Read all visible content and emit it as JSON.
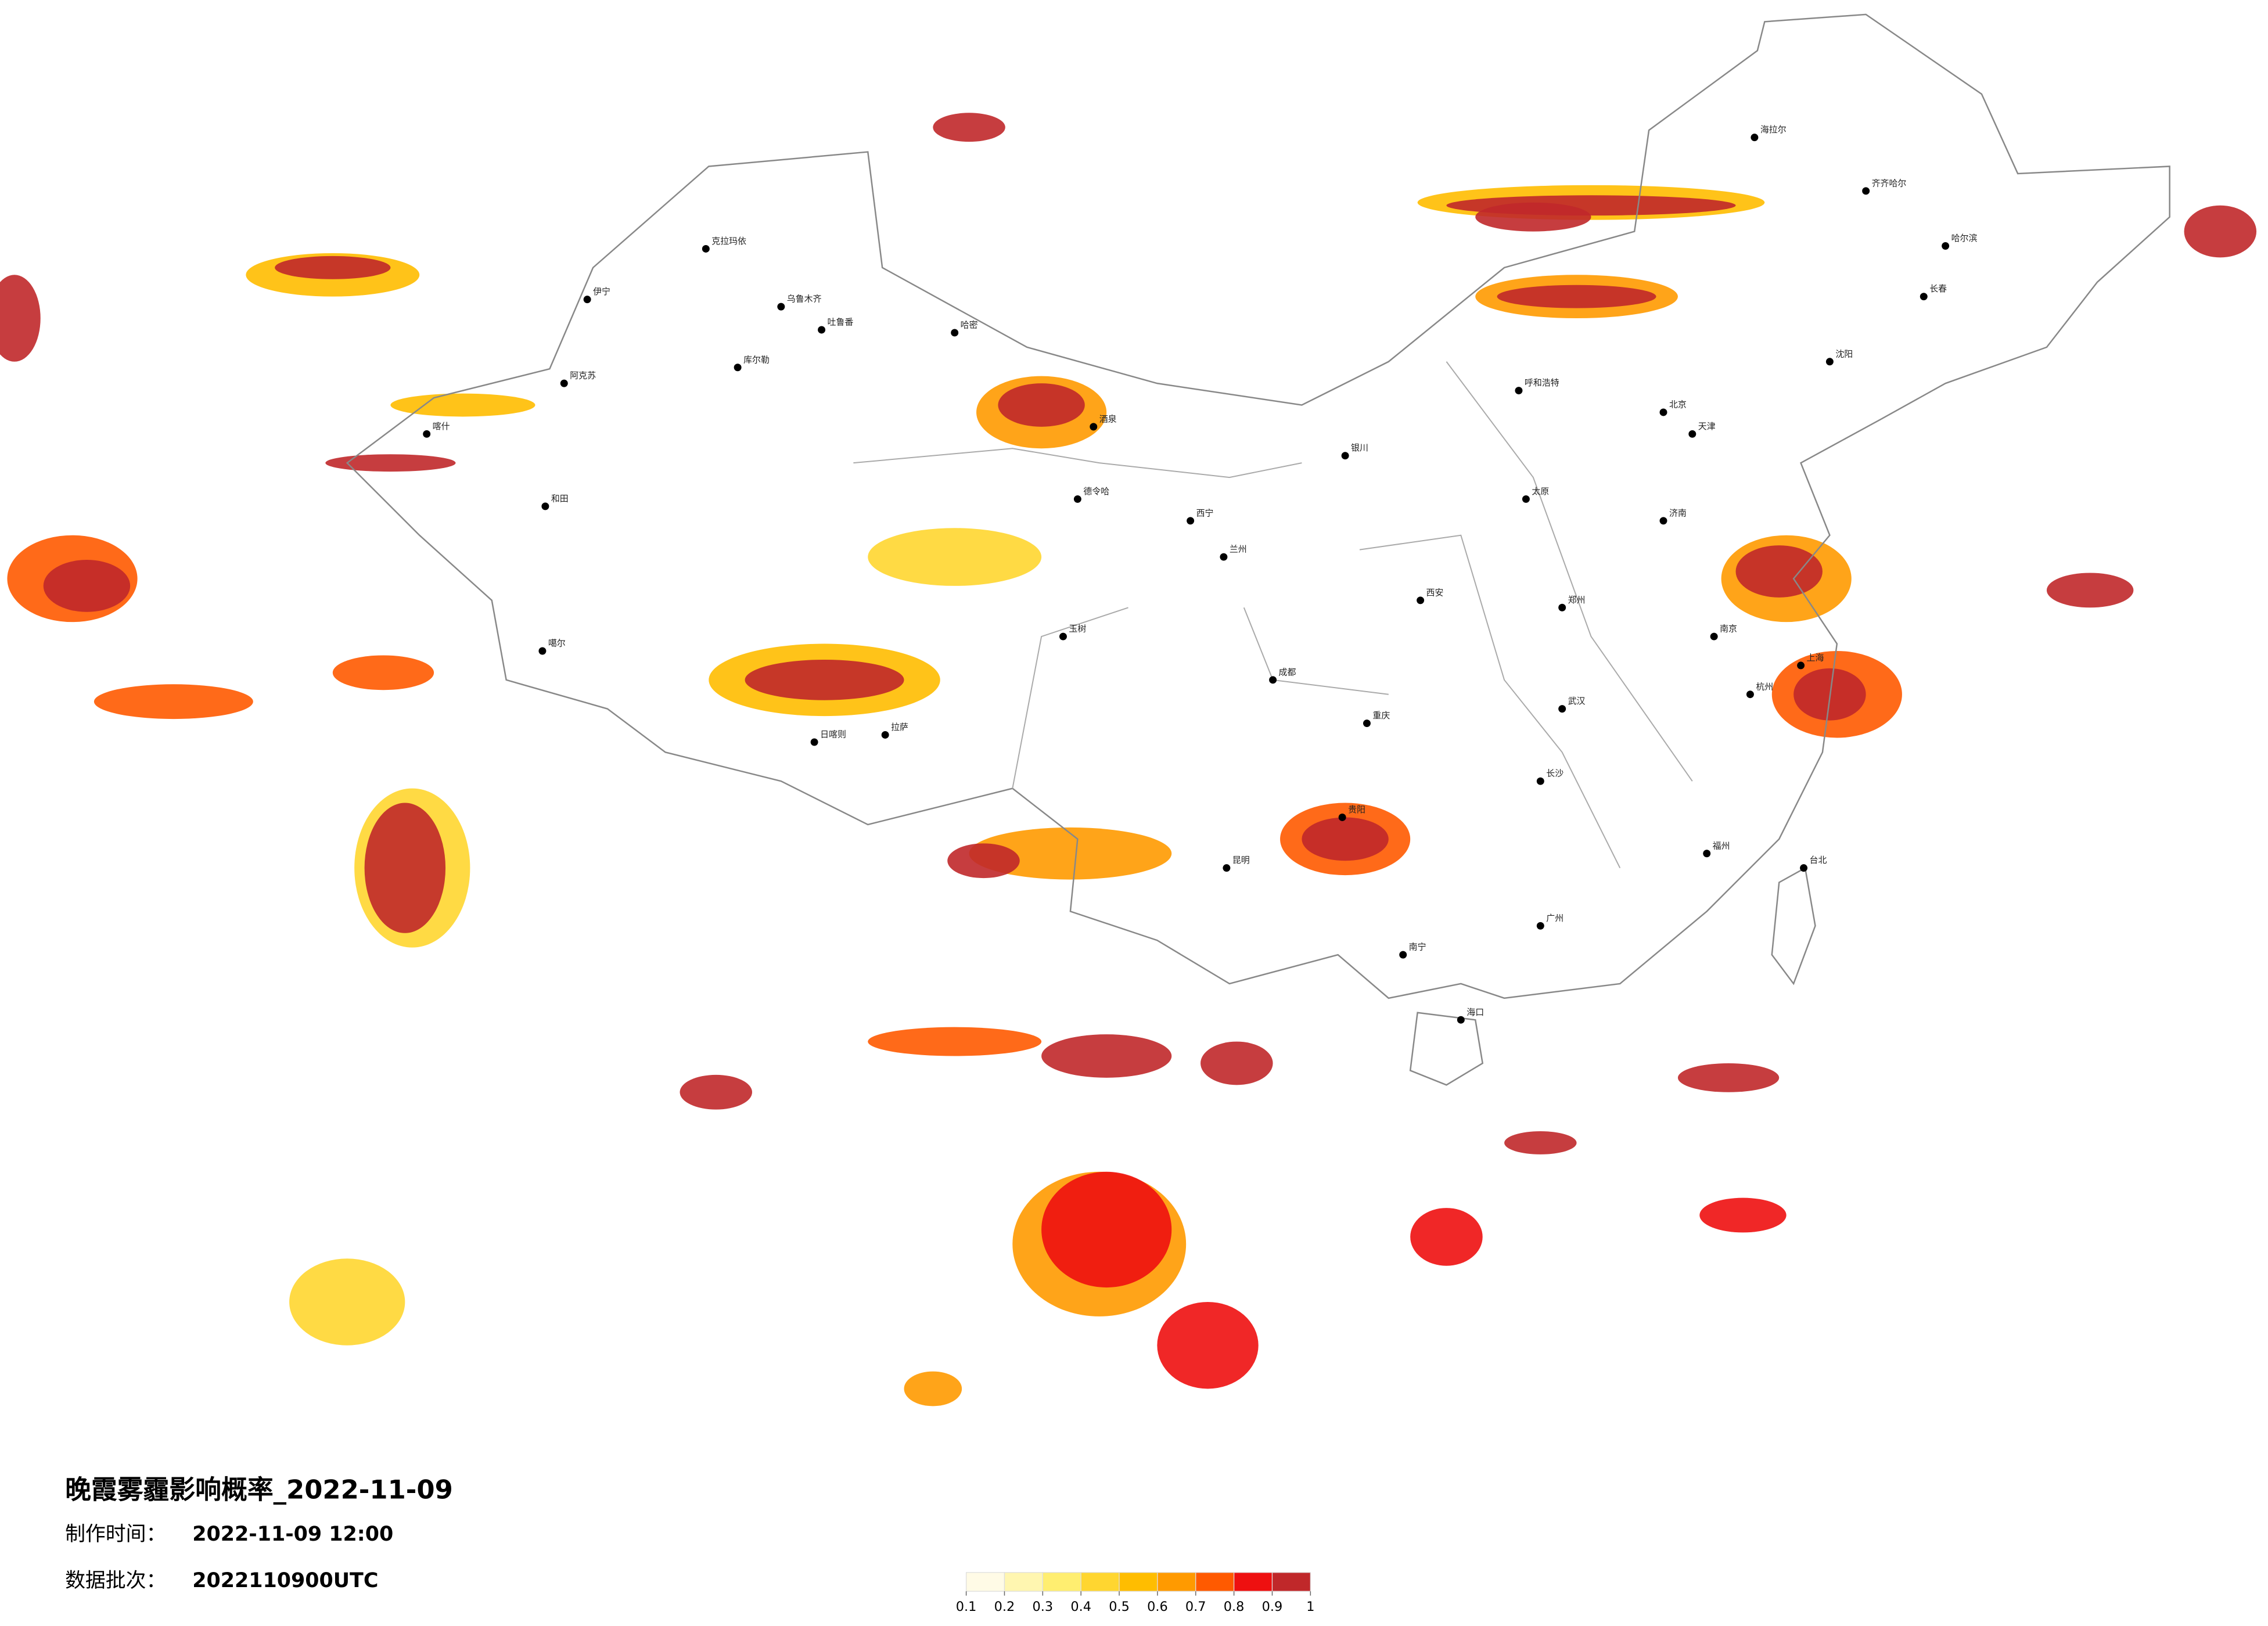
{
  "title": "晚霞雾霾影响概率_2022-11-09",
  "made_label": "制作时间：",
  "made_time": "2022-11-09 12:00",
  "batch_label": "数据批次：",
  "batch": "2022110900UTC",
  "legend": {
    "ticks": [
      0.1,
      0.2,
      0.3,
      0.4,
      0.5,
      0.6,
      0.7,
      0.8,
      0.9,
      1
    ],
    "colors": [
      "#fffbe6",
      "#fff6b0",
      "#ffee70",
      "#ffd630",
      "#ffbd00",
      "#ff9a00",
      "#ff5a00",
      "#ee1010",
      "#c0282a"
    ]
  },
  "cities": [
    "克拉玛依",
    "乌鲁木齐",
    "吐鲁番",
    "哈密",
    "库尔勒",
    "阿克苏",
    "伊宁",
    "喀什",
    "和田",
    "噶尔",
    "日喀则",
    "拉萨",
    "酒泉",
    "德令哈",
    "西宁",
    "兰州",
    "玉树",
    "成都",
    "重庆",
    "昆明",
    "贵阳",
    "南宁",
    "海口",
    "广州",
    "福州",
    "台北",
    "杭州",
    "上海",
    "南京",
    "武汉",
    "长沙",
    "郑州",
    "西安",
    "太原",
    "北京",
    "天津",
    "济南",
    "沈阳",
    "长春",
    "哈尔滨",
    "呼和浩特",
    "银川",
    "海拉尔",
    "齐齐哈尔"
  ]
}
